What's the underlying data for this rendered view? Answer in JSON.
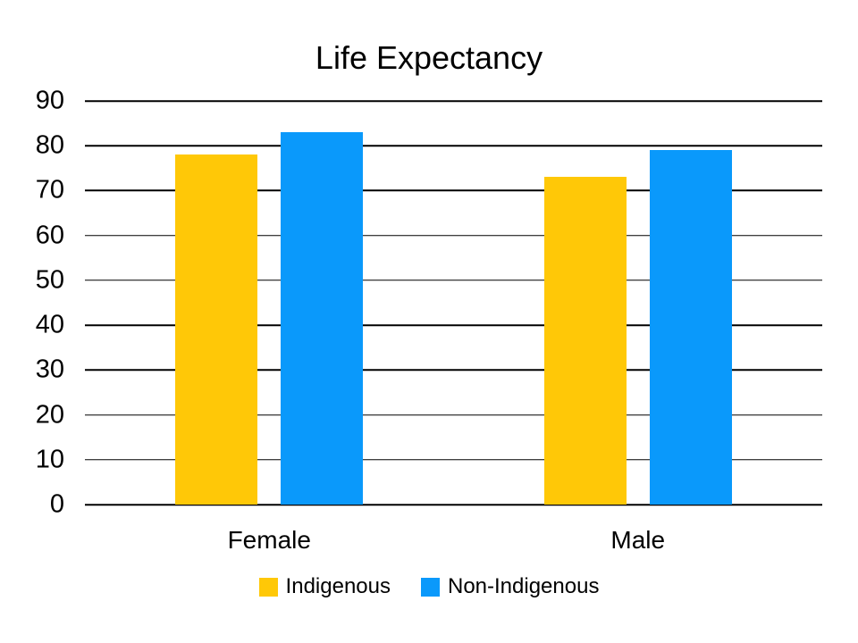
{
  "chart_data": {
    "type": "bar",
    "title": "Life Expectancy",
    "categories": [
      "Female",
      "Male"
    ],
    "series": [
      {
        "name": "Indigenous",
        "color": "#FFC807",
        "values": [
          78,
          73
        ]
      },
      {
        "name": "Non-Indigenous",
        "color": "#0A99FB",
        "values": [
          83,
          79
        ]
      }
    ],
    "xlabel": "",
    "ylabel": "",
    "y_axis": {
      "min": 0,
      "max": 90,
      "step": 10,
      "ticks": [
        0,
        10,
        20,
        30,
        40,
        50,
        60,
        70,
        80,
        90
      ]
    },
    "grid": true,
    "legend_position": "bottom"
  },
  "colors": {
    "background": "#FFFFFF",
    "text": "#000000",
    "gridline": "#000000"
  }
}
